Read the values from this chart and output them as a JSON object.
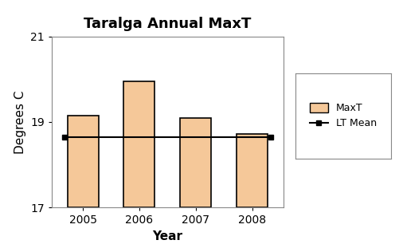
{
  "title": "Taralga Annual MaxT",
  "years": [
    2005,
    2006,
    2007,
    2008
  ],
  "bar_values": [
    19.15,
    19.95,
    19.1,
    18.72
  ],
  "lt_mean": 18.65,
  "bar_color": "#F5C899",
  "bar_edgecolor": "#000000",
  "line_color": "#000000",
  "ylim": [
    17,
    21
  ],
  "yticks": [
    17,
    19,
    21
  ],
  "xlabel": "Year",
  "ylabel": "Degrees C",
  "legend_labels": [
    "MaxT",
    "LT Mean"
  ],
  "title_fontsize": 13,
  "axis_fontsize": 11,
  "tick_fontsize": 10,
  "background_color": "#ffffff"
}
